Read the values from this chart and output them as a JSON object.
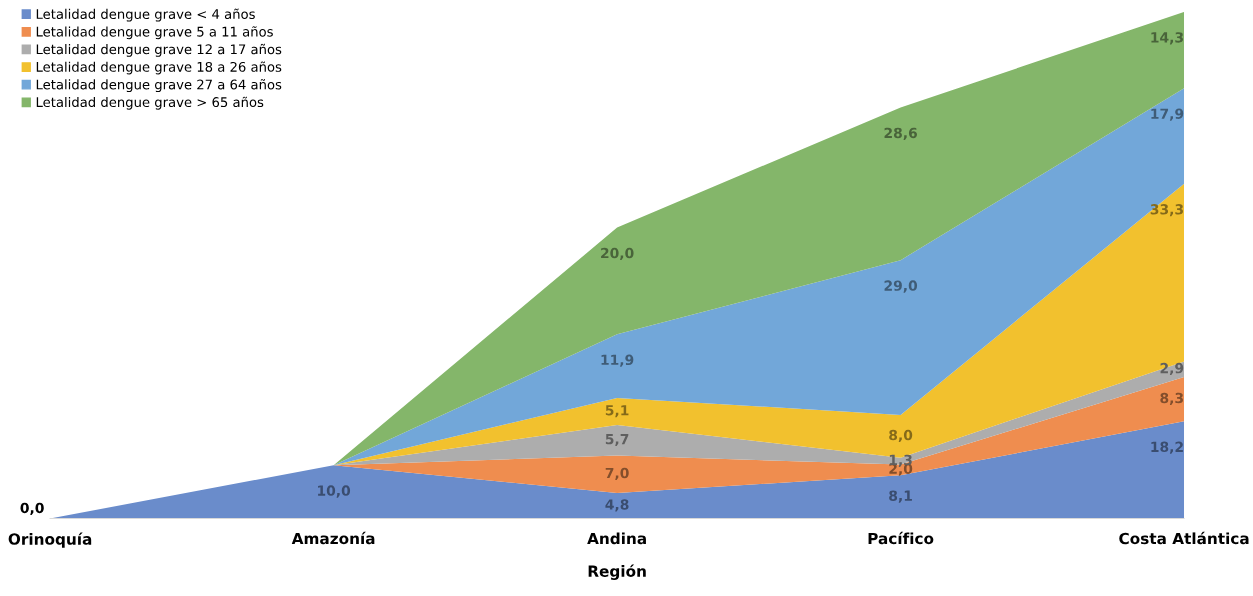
{
  "chart_data": {
    "type": "area",
    "stacked": true,
    "xlabel": "Región",
    "categories": [
      "Orinoquía",
      "Amazonía",
      "Andina",
      "Pacífico",
      "Costa Atlántica"
    ],
    "tick_labels": "x",
    "grid": false,
    "legend": "top left",
    "series": [
      {
        "name": "Letalidad dengue grave < 4 años",
        "color": "#6a8ccb",
        "values": [
          0.0,
          10.0,
          4.8,
          8.1,
          18.2
        ],
        "value_labels": [
          "0,0",
          "10,0",
          "4,8",
          "8,1",
          "18,2"
        ]
      },
      {
        "name": "Letalidad dengue grave 5 a 11 años",
        "color": "#ef8d4f",
        "values": [
          0,
          0,
          7.0,
          2.0,
          8.3
        ],
        "value_labels": [
          null,
          null,
          "7,0",
          "2,0",
          "8,3"
        ]
      },
      {
        "name": "Letalidad dengue grave 12 a 17 años",
        "color": "#adadad",
        "values": [
          0,
          0,
          5.7,
          1.3,
          2.9
        ],
        "value_labels": [
          null,
          null,
          "5,7",
          "1,3",
          "2,9"
        ]
      },
      {
        "name": "Letalidad dengue grave 18 a 26 años",
        "color": "#f2c12e",
        "values": [
          0,
          0,
          5.1,
          8.0,
          33.3
        ],
        "value_labels": [
          null,
          null,
          "5,1",
          "8,0",
          "33,3"
        ]
      },
      {
        "name": "Letalidad dengue grave 27 a 64 años",
        "color": "#72a7d9",
        "values": [
          0,
          0,
          11.9,
          29.0,
          17.9
        ],
        "value_labels": [
          null,
          null,
          "11,9",
          "29,0",
          "17,9"
        ]
      },
      {
        "name": "Letalidad dengue grave > 65 años",
        "color": "#84b66a",
        "values": [
          0,
          0,
          20.0,
          28.6,
          14.3
        ],
        "value_labels": [
          null,
          null,
          "20,0",
          "28,6",
          "14,3"
        ]
      }
    ]
  }
}
